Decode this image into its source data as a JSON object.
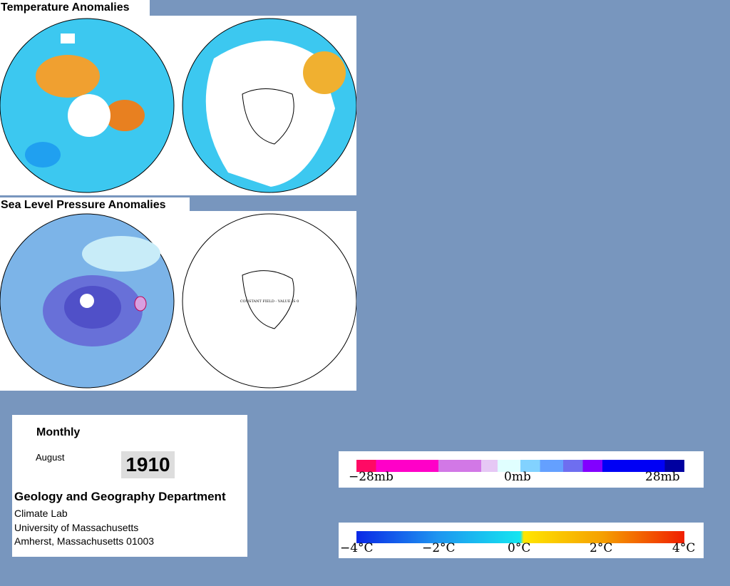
{
  "temperature": {
    "title": "Temperature Anomalies"
  },
  "pressure": {
    "title": "Sea Level Pressure Anomalies",
    "note": "CONSTANT FIELD - VALUE IS 0"
  },
  "info": {
    "period": "Monthly",
    "month": "August",
    "year": "1910",
    "department": "Geology and Geography Department",
    "lab": "Climate Lab",
    "university": "University of Massachusetts",
    "address": "Amherst, Massachusetts 01003"
  },
  "pressure_scale": {
    "labels": [
      "−28mb",
      "0mb",
      "28mb"
    ]
  },
  "temperature_scale": {
    "labels": [
      "−4°C",
      "−2°C",
      "0°C",
      "2°C",
      "4°C"
    ]
  }
}
